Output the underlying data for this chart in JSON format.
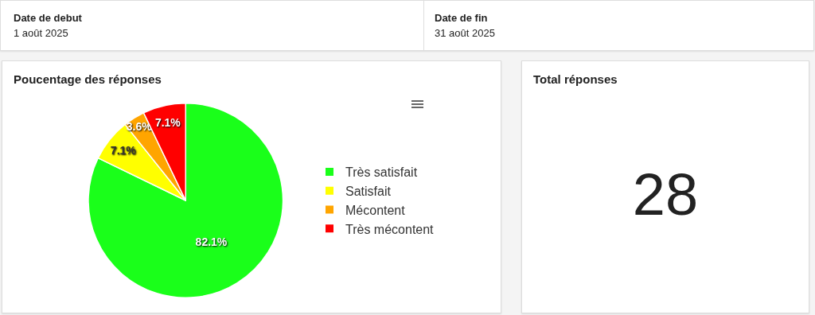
{
  "chart_data": [
    {
      "type": "other",
      "annotations": [
        "Date de debut",
        "1 août 2025",
        "Date de fin",
        "31 août 2025"
      ]
    },
    {
      "type": "pie",
      "title": "Poucentage des réponses",
      "categories": [
        "Très satisfait",
        "Satisfait",
        "Mécontent",
        "Très mécontent"
      ],
      "values": [
        82.1,
        7.1,
        3.6,
        7.1
      ],
      "colors": [
        "#1aff1a",
        "#ffff00",
        "#ffa500",
        "#ff0000"
      ],
      "value_labels": [
        "82.1%",
        "7.1%",
        "3.6%",
        "7.1%"
      ],
      "legend": "right"
    },
    {
      "type": "other",
      "title": "Total réponses",
      "annotations": [
        "28"
      ]
    }
  ]
}
